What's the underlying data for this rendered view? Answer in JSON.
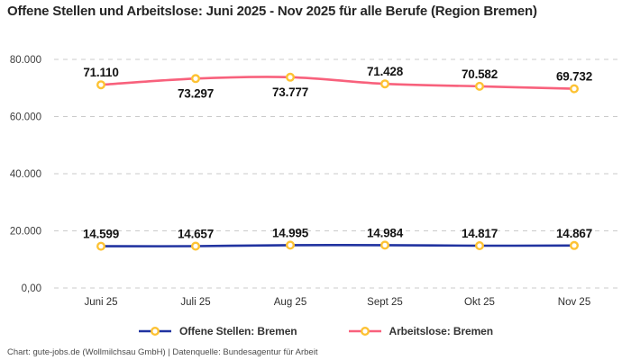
{
  "title": "Offene Stellen und Arbeitslose: Juni 2025 - Nov 2025 für alle Berufe (Region Bremen)",
  "footer": "Chart: gute-jobs.de (Wollmilchsau GmbH) | Datenquelle: Bundesagentur für Arbeit",
  "chart_data": {
    "type": "line",
    "title": "Offene Stellen und Arbeitslose: Juni 2025 - Nov 2025 für alle Berufe (Region Bremen)",
    "categories": [
      "Juni 25",
      "Juli 25",
      "Aug 25",
      "Sept 25",
      "Okt 25",
      "Nov 25"
    ],
    "series": [
      {
        "name": "Offene Stellen: Bremen",
        "color": "#2133a0",
        "values": [
          14599,
          14657,
          14995,
          14984,
          14817,
          14867
        ],
        "labels": [
          "14.599",
          "14.657",
          "14.995",
          "14.984",
          "14.817",
          "14.867"
        ],
        "label_positions": [
          "above",
          "above",
          "above",
          "above",
          "above",
          "above"
        ]
      },
      {
        "name": "Arbeitslose: Bremen",
        "color": "#f8617c",
        "values": [
          71110,
          73297,
          73777,
          71428,
          70582,
          69732
        ],
        "labels": [
          "71.110",
          "73.297",
          "73.777",
          "71.428",
          "70.582",
          "69.732"
        ],
        "label_positions": [
          "above",
          "below",
          "below",
          "above",
          "above",
          "above"
        ]
      }
    ],
    "yticks": [
      {
        "v": 0,
        "label": "0,00"
      },
      {
        "v": 20000,
        "label": "20.000"
      },
      {
        "v": 40000,
        "label": "40.000"
      },
      {
        "v": 60000,
        "label": "60.000"
      },
      {
        "v": 80000,
        "label": "80.000"
      }
    ],
    "ylim": [
      0,
      80000
    ],
    "grid": "horizontal-dashed",
    "legend_position": "bottom",
    "marker_color": "#fdc233",
    "grid_color": "#cbcbcb",
    "marker_style": "circle-white-fill"
  }
}
